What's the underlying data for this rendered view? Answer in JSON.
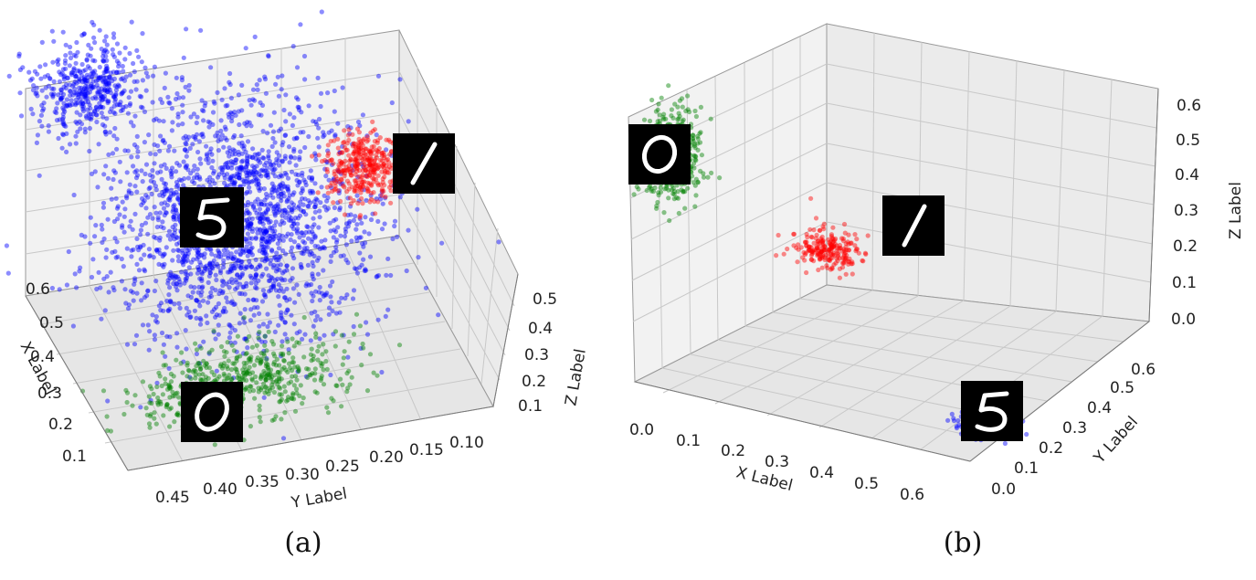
{
  "captions": [
    "(a)",
    "(b)"
  ],
  "chart_data": [
    {
      "type": "scatter",
      "subtype": "3d",
      "panel": "a",
      "xlabel": "X Label",
      "ylabel": "Y Label",
      "zlabel": "Z Label",
      "xticks": [
        "0.1",
        "0.2",
        "0.3",
        "0.4",
        "0.5",
        "0.6"
      ],
      "yticks": [
        "0.45",
        "0.40",
        "0.35",
        "0.30",
        "0.25",
        "0.20",
        "0.15",
        "0.10"
      ],
      "zticks": [
        "0.1",
        "0.2",
        "0.3",
        "0.4",
        "0.5"
      ],
      "xlim": [
        0.05,
        0.65
      ],
      "ylim": [
        0.07,
        0.48
      ],
      "zlim": [
        0.05,
        0.55
      ],
      "grid": true,
      "colors": {
        "digit_5": "#0000ff",
        "digit_1": "#ff0000",
        "digit_0": "#008000"
      },
      "series": [
        {
          "name": "5",
          "color": "#0000ff",
          "center": [
            0.35,
            0.3,
            0.3
          ],
          "spread": [
            0.11,
            0.07,
            0.1
          ],
          "count": 2000
        },
        {
          "name": "5",
          "color": "#0000ff",
          "center": [
            0.6,
            0.42,
            0.45
          ],
          "spread": [
            0.03,
            0.03,
            0.04
          ],
          "count": 450
        },
        {
          "name": "1",
          "color": "#ff0000",
          "center": [
            0.45,
            0.14,
            0.3
          ],
          "spread": [
            0.025,
            0.02,
            0.03
          ],
          "count": 350
        },
        {
          "name": "0",
          "color": "#008000",
          "center": [
            0.18,
            0.33,
            0.1
          ],
          "spread": [
            0.04,
            0.06,
            0.03
          ],
          "count": 550
        }
      ],
      "digit_images": [
        "5",
        "1",
        "0"
      ]
    },
    {
      "type": "scatter",
      "subtype": "3d",
      "panel": "b",
      "xlabel": "X Label",
      "ylabel": "Y Label",
      "zlabel": "Z Label",
      "xticks": [
        "0.0",
        "0.1",
        "0.2",
        "0.3",
        "0.4",
        "0.5",
        "0.6"
      ],
      "yticks": [
        "0.0",
        "0.1",
        "0.2",
        "0.3",
        "0.4",
        "0.5",
        "0.6"
      ],
      "zticks": [
        "0.0",
        "0.1",
        "0.2",
        "0.3",
        "0.4",
        "0.5",
        "0.6"
      ],
      "xlim": [
        0.0,
        0.65
      ],
      "ylim": [
        0.0,
        0.65
      ],
      "zlim": [
        0.0,
        0.65
      ],
      "grid": true,
      "colors": {
        "digit_5": "#0000ff",
        "digit_1": "#ff0000",
        "digit_0": "#008000"
      },
      "series": [
        {
          "name": "0",
          "color": "#008000",
          "center": [
            0.02,
            0.1,
            0.48
          ],
          "spread": [
            0.02,
            0.03,
            0.05
          ],
          "count": 420
        },
        {
          "name": "1",
          "color": "#ff0000",
          "center": [
            0.2,
            0.3,
            0.25
          ],
          "spread": [
            0.03,
            0.02,
            0.02
          ],
          "count": 220
        },
        {
          "name": "5",
          "color": "#0000ff",
          "center": [
            0.6,
            0.15,
            0.02
          ],
          "spread": [
            0.025,
            0.025,
            0.01
          ],
          "count": 420
        }
      ],
      "digit_images": [
        "0",
        "1",
        "5"
      ]
    }
  ]
}
